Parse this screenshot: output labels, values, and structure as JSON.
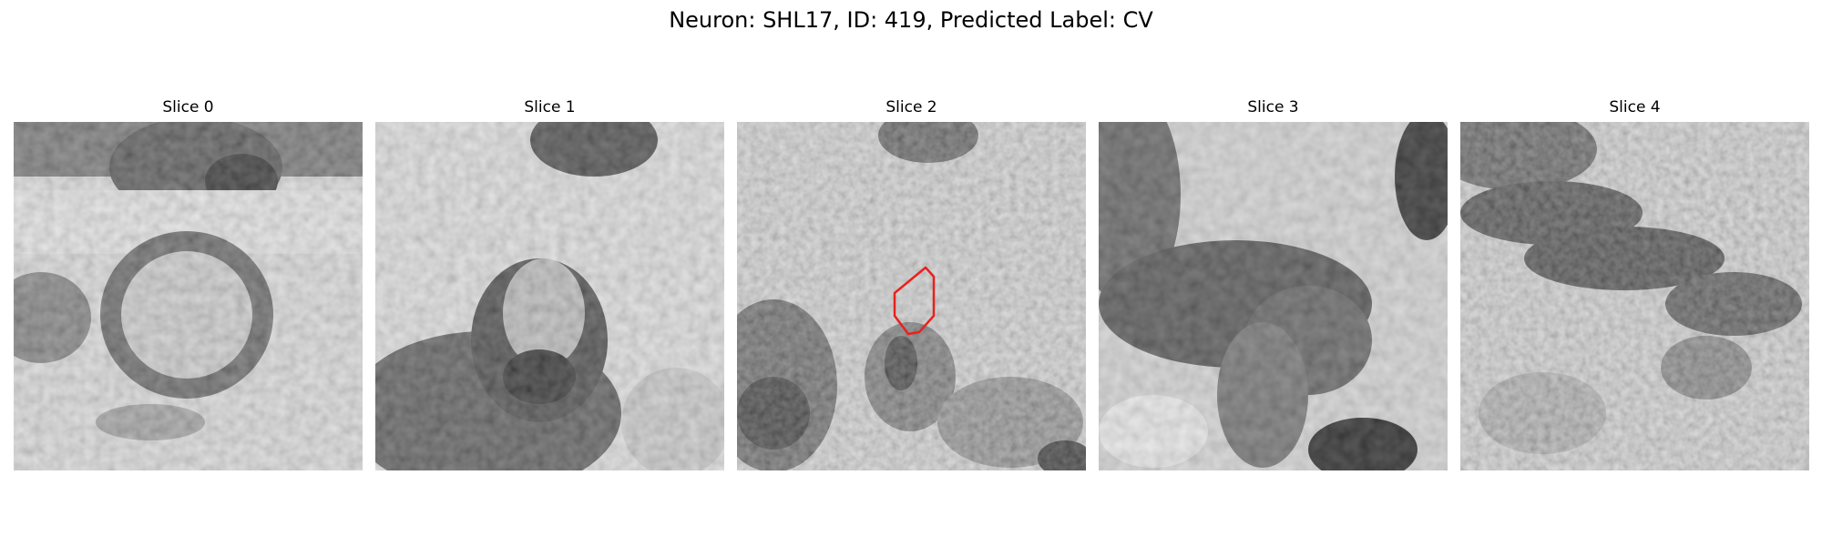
{
  "figure": {
    "title": "Neuron: SHL17, ID: 419, Predicted Label: CV"
  },
  "panels": [
    {
      "title": "Slice 0",
      "has_outline": false
    },
    {
      "title": "Slice 1",
      "has_outline": false
    },
    {
      "title": "Slice 2",
      "has_outline": true
    },
    {
      "title": "Slice 3",
      "has_outline": false
    },
    {
      "title": "Slice 4",
      "has_outline": false
    }
  ],
  "colors": {
    "outline": "#e8211d",
    "background": "#ffffff"
  }
}
